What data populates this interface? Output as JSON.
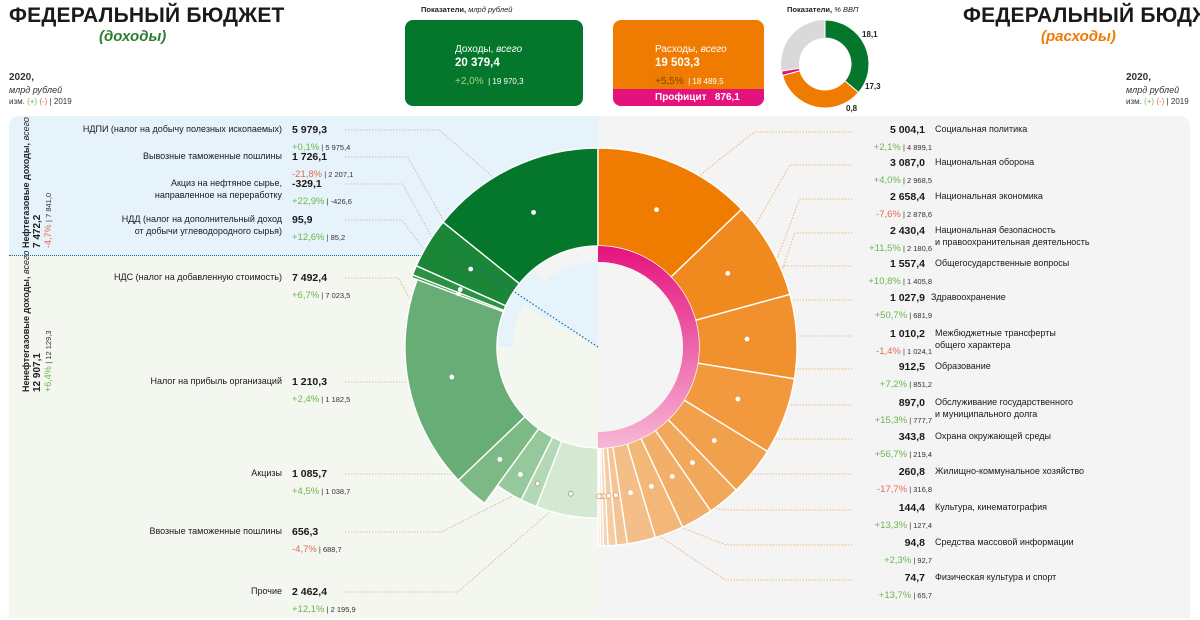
{
  "titles": {
    "left_title": "ФЕДЕРАЛЬНЫЙ БЮДЖЕТ",
    "left_subtitle": "(доходы)",
    "right_title": "ФЕДЕРАЛЬНЫЙ БЮДЖЕТ",
    "right_subtitle": "(расходы)"
  },
  "year_note": {
    "year": "2020,",
    "unit": "млрд рублей",
    "change_prefix": "изм.",
    "plus": "(+)",
    "minus": "(-)",
    "base_year": "| 2019"
  },
  "indicators": {
    "header_bln": "Показатели,",
    "header_bln_unit": "млрд рублей",
    "header_gdp": "Показатели,",
    "header_gdp_unit": "% ВВП",
    "income_card": {
      "label": "Доходы,",
      "label_suffix": "всего",
      "value": "20 379,4",
      "change": "+2,0%",
      "prev": "| 19 970,3"
    },
    "expense_card": {
      "label": "Расходы,",
      "label_suffix": "всего",
      "value": "19 503,3",
      "change": "+5,5%",
      "prev": "| 18 489,5"
    },
    "surplus": {
      "label": "Профицит",
      "value": "876,1"
    }
  },
  "gdp_donut": {
    "values": [
      18.1,
      17.3,
      0.8
    ],
    "labels": [
      "18,1",
      "17,3",
      "0,8"
    ],
    "colors": [
      "#05772c",
      "#ef7b00",
      "#e5127d"
    ]
  },
  "groups": {
    "oil_gas": {
      "label": "Нефтегазовые доходы,",
      "label_suffix": "всего",
      "value": "7 472,2",
      "change": "-4,7%",
      "prev": "| 7 841,0"
    },
    "non_oil": {
      "label": "Ненефтегазовые доходы,",
      "label_suffix": "всего",
      "value": "12 907,1",
      "change": "+6,4%",
      "prev": "| 12 129,3"
    }
  },
  "chart_data": {
    "type": "pie",
    "title": "ФЕДЕРАЛЬНЫЙ БЮДЖЕТ",
    "unit": "млрд рублей",
    "income": {
      "subtitle": "(доходы)",
      "total": 20379.4,
      "items": [
        {
          "label": "НДПИ (налог на добычу полезных ископаемых)",
          "value": 5979.3,
          "value_text": "5 979,3",
          "change": "+0,1%",
          "prev": "| 5 975,4",
          "group": "oil_gas"
        },
        {
          "label": "Вывозные таможенные пошлины",
          "value": 1726.1,
          "value_text": "1 726,1",
          "change": "-21,8%",
          "prev": "| 2 207,1",
          "group": "oil_gas"
        },
        {
          "label": "Акциз на нефтяное сырье, направленное на переработку",
          "value": -329.1,
          "value_text": "-329,1",
          "change": "+22,9%",
          "prev": "| -426,6",
          "group": "oil_gas"
        },
        {
          "label": "НДД (налог на дополнительный доход от добычи углеводородного сырья)",
          "value": 95.9,
          "value_text": "95,9",
          "change": "+12,6%",
          "prev": "| 85,2",
          "group": "oil_gas"
        },
        {
          "label": "НДС (налог на добавленную стоимость)",
          "value": 7492.4,
          "value_text": "7 492,4",
          "change": "+6,7%",
          "prev": "| 7 023,5",
          "group": "non_oil"
        },
        {
          "label": "Налог на прибыль организаций",
          "value": 1210.3,
          "value_text": "1 210,3",
          "change": "+2,4%",
          "prev": "| 1 182,5",
          "group": "non_oil"
        },
        {
          "label": "Акцизы",
          "value": 1085.7,
          "value_text": "1 085,7",
          "change": "+4,5%",
          "prev": "| 1 038,7",
          "group": "non_oil"
        },
        {
          "label": "Ввозные таможенные пошлины",
          "value": 656.3,
          "value_text": "656,3",
          "change": "-4,7%",
          "prev": "| 688,7",
          "group": "non_oil"
        },
        {
          "label": "Прочие",
          "value": 2462.4,
          "value_text": "2 462,4",
          "change": "+12,1%",
          "prev": "| 2 195,9",
          "group": "non_oil"
        }
      ]
    },
    "expenses": {
      "subtitle": "(расходы)",
      "total": 19503.3,
      "items": [
        {
          "label": "Социальная политика",
          "value": 5004.1,
          "value_text": "5 004,1",
          "change": "+2,1%",
          "prev": "| 4 899,1"
        },
        {
          "label": "Национальная оборона",
          "value": 3087.0,
          "value_text": "3 087,0",
          "change": "+4,0%",
          "prev": "| 2 968,5"
        },
        {
          "label": "Национальная экономика",
          "value": 2658.4,
          "value_text": "2 658,4",
          "change": "-7,6%",
          "prev": "| 2 878,6"
        },
        {
          "label": "Национальная безопасность и правоохранительная деятельность",
          "value": 2430.4,
          "value_text": "2 430,4",
          "change": "+11,5%",
          "prev": "| 2 180,6"
        },
        {
          "label": "Общегосударственные вопросы",
          "value": 1557.4,
          "value_text": "1 557,4",
          "change": "+10,8%",
          "prev": "| 1 405,8"
        },
        {
          "label": "Здравоохранение",
          "value": 1027.9,
          "value_text": "1 027,9",
          "change": "+50,7%",
          "prev": "| 681,9"
        },
        {
          "label": "Межбюджетные трансферты общего характера",
          "value": 1010.2,
          "value_text": "1 010,2",
          "change": "-1,4%",
          "prev": "| 1 024,1"
        },
        {
          "label": "Образование",
          "value": 912.5,
          "value_text": "912,5",
          "change": "+7,2%",
          "prev": "| 851,2"
        },
        {
          "label": "Обслуживание государственного и муниципального долга",
          "value": 897.0,
          "value_text": "897,0",
          "change": "+15,3%",
          "prev": "| 777,7"
        },
        {
          "label": "Охрана окружающей среды",
          "value": 343.8,
          "value_text": "343,8",
          "change": "+56,7%",
          "prev": "| 219,4"
        },
        {
          "label": "Жилищно-коммунальное хозяйство",
          "value": 260.8,
          "value_text": "260,8",
          "change": "-17,7%",
          "prev": "| 316,8"
        },
        {
          "label": "Культура, кинематография",
          "value": 144.4,
          "value_text": "144,4",
          "change": "+13,3%",
          "prev": "| 127,4"
        },
        {
          "label": "Средства массовой информации",
          "value": 94.8,
          "value_text": "94,8",
          "change": "+2,3%",
          "prev": "| 92,7"
        },
        {
          "label": "Физическая культура и спорт",
          "value": 74.7,
          "value_text": "74,7",
          "change": "+13,7%",
          "prev": "| 65,7"
        }
      ]
    }
  },
  "colors": {
    "income_green": "#05772c",
    "expense_orange": "#ef7b00",
    "surplus_pink": "#e5127d",
    "positive": "#6cb64f",
    "negative": "#e26b50",
    "oil_bg": "#e6f3fb",
    "nonoil_bg": "#f4f7ef",
    "right_bg": "#f4f4f4"
  }
}
